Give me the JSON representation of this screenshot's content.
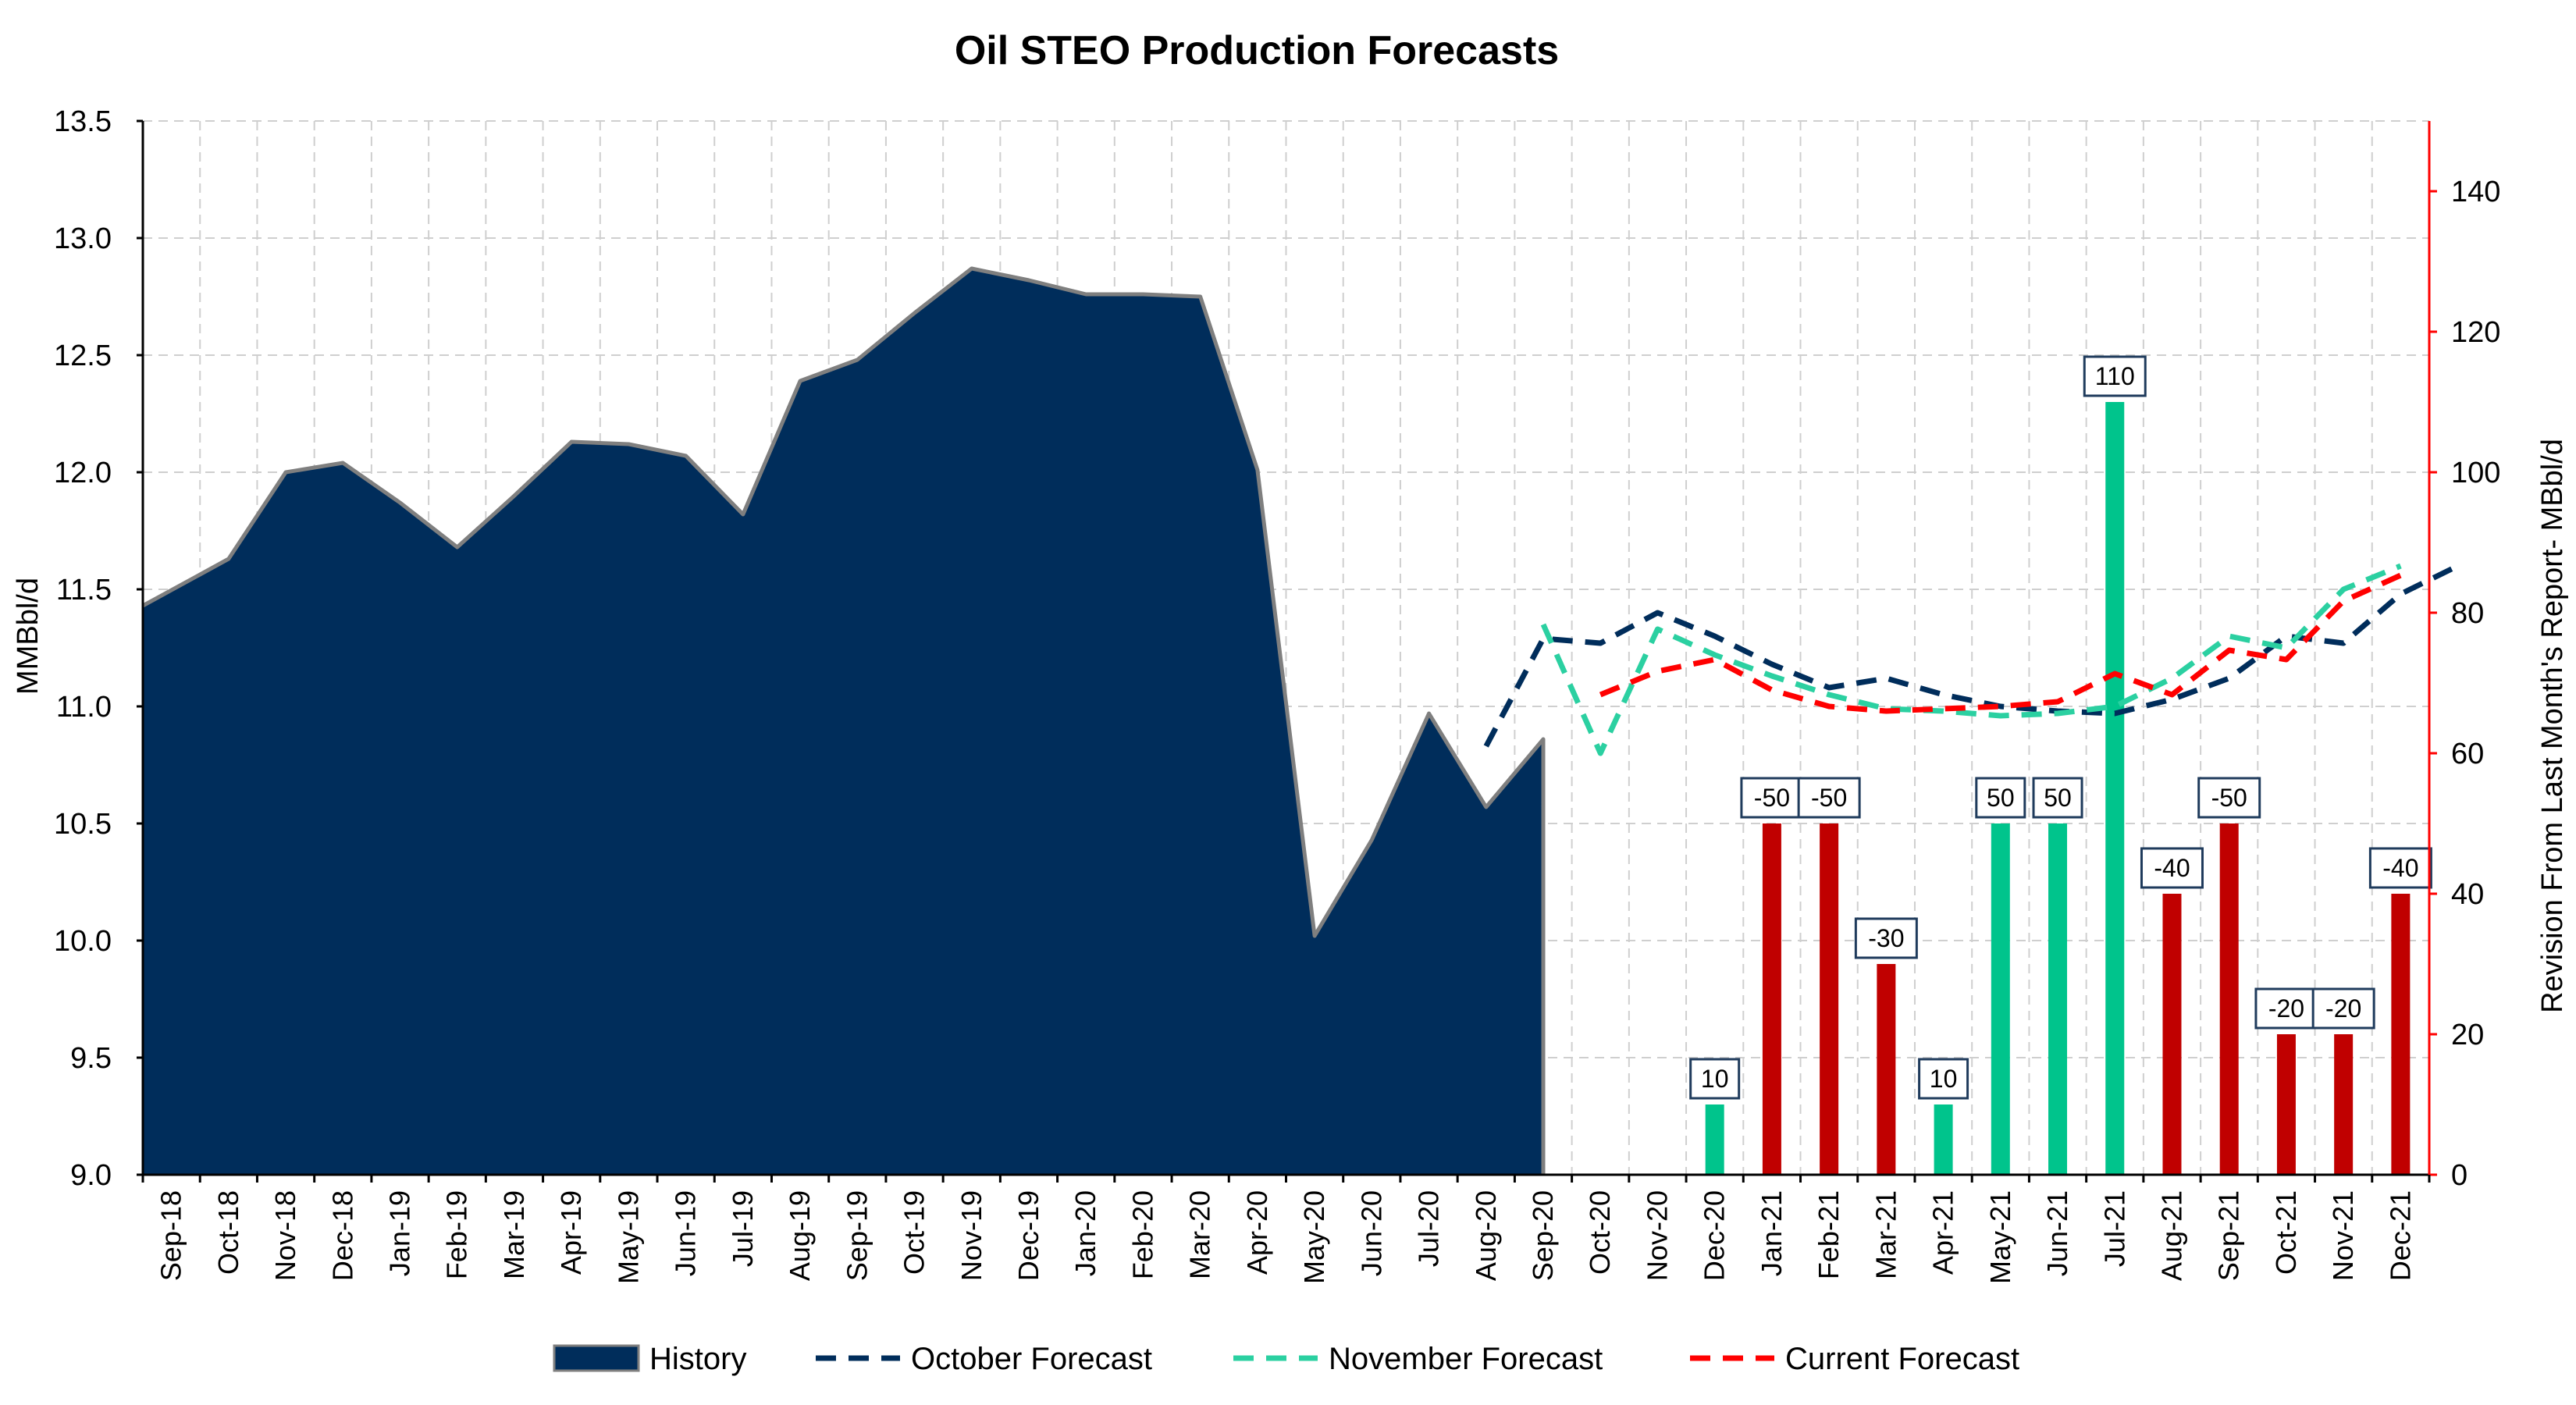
{
  "chart_data": {
    "type": "area",
    "title": "Oil STEO Production Forecasts",
    "ylabel": "MMBbl/d",
    "ylabel_right": "Revision From Last Month's Report- MBbl/d",
    "ylim": [
      9.0,
      13.5
    ],
    "y_ticks": [
      "9.0",
      "9.5",
      "10.0",
      "10.5",
      "11.0",
      "11.5",
      "12.0",
      "12.5",
      "13.0",
      "13.5"
    ],
    "ylim_right": [
      0,
      150
    ],
    "y_ticks_right": [
      "0",
      "20",
      "40",
      "60",
      "80",
      "100",
      "120",
      "140"
    ],
    "grid": true,
    "legend_position": "bottom",
    "categories": [
      "Sep-18",
      "Oct-18",
      "Nov-18",
      "Dec-18",
      "Jan-19",
      "Feb-19",
      "Mar-19",
      "Apr-19",
      "May-19",
      "Jun-19",
      "Jul-19",
      "Aug-19",
      "Sep-19",
      "Oct-19",
      "Nov-19",
      "Dec-19",
      "Jan-20",
      "Feb-20",
      "Mar-20",
      "Apr-20",
      "May-20",
      "Jun-20",
      "Jul-20",
      "Aug-20",
      "Sep-20",
      "Oct-20",
      "Nov-20",
      "Dec-20",
      "Jan-21",
      "Feb-21",
      "Mar-21",
      "Apr-21",
      "May-21",
      "Jun-21",
      "Jul-21",
      "Aug-21",
      "Sep-21",
      "Oct-21",
      "Nov-21",
      "Dec-21"
    ],
    "history": {
      "name": "History",
      "color": "#002D5B",
      "start_index": 0,
      "values": [
        11.43,
        11.63,
        12.0,
        12.04,
        11.87,
        11.68,
        11.9,
        12.13,
        12.12,
        12.07,
        11.82,
        12.39,
        12.48,
        12.68,
        12.87,
        12.82,
        12.76,
        12.76,
        12.75,
        12.01,
        10.02,
        10.43,
        10.97,
        10.57,
        10.86
      ]
    },
    "forecasts": [
      {
        "name": "October Forecast",
        "color": "#002D5B",
        "start_index": 23,
        "values": [
          10.83,
          11.29,
          11.27,
          11.4,
          11.3,
          11.18,
          11.08,
          11.12,
          11.05,
          11.0,
          10.98,
          10.97,
          11.03,
          11.12,
          11.3,
          11.27,
          11.48,
          11.6
        ]
      },
      {
        "name": "November Forecast",
        "color": "#2BD0A1",
        "start_index": 24,
        "values": [
          11.35,
          10.8,
          11.33,
          11.22,
          11.13,
          11.05,
          10.99,
          10.98,
          10.96,
          10.97,
          11.0,
          11.12,
          11.3,
          11.25,
          11.5,
          11.6
        ]
      },
      {
        "name": "Current Forecast",
        "color": "#FF0000",
        "start_index": 25,
        "values": [
          11.05,
          11.15,
          11.2,
          11.07,
          11.0,
          10.98,
          10.99,
          11.0,
          11.02,
          11.14,
          11.05,
          11.24,
          11.2,
          11.45,
          11.56
        ]
      }
    ],
    "revisions": {
      "start_index": 27,
      "values": [
        10,
        -50,
        -50,
        -30,
        10,
        50,
        50,
        110,
        -40,
        -50,
        -20,
        -20,
        -40
      ],
      "labels": [
        "10",
        "-50",
        "-50",
        "-30",
        "10",
        "50",
        "50",
        "110",
        "-40",
        "-50",
        "-20",
        "-20",
        "-40"
      ],
      "positive_color": "#00C48C",
      "negative_color": "#C00000"
    },
    "legend": [
      "History",
      "October Forecast",
      "November Forecast",
      "Current Forecast"
    ]
  }
}
